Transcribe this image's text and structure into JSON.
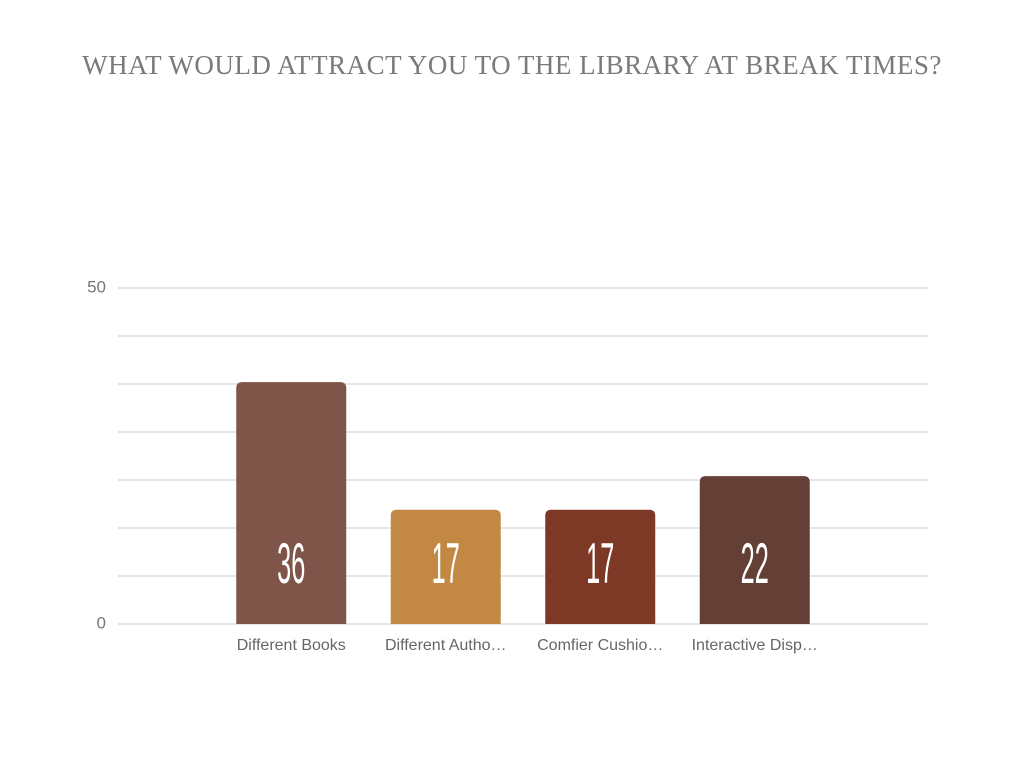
{
  "chart_data": {
    "type": "bar",
    "title": "WHAT WOULD ATTRACT YOU TO THE LIBRARY AT BREAK TIMES?",
    "categories": [
      "Different Books",
      "Different Autho…",
      "Comfier Cushio…",
      "Interactive Disp…"
    ],
    "values": [
      36,
      17,
      17,
      22
    ],
    "colors": [
      "#7f5549",
      "#c28844",
      "#7d3826",
      "#633f35"
    ],
    "ylim": [
      0,
      50
    ],
    "yticks": [
      0,
      50
    ],
    "ygrid": [
      0,
      7.14,
      14.29,
      21.43,
      28.57,
      35.71,
      42.86,
      50
    ],
    "grid": true
  }
}
